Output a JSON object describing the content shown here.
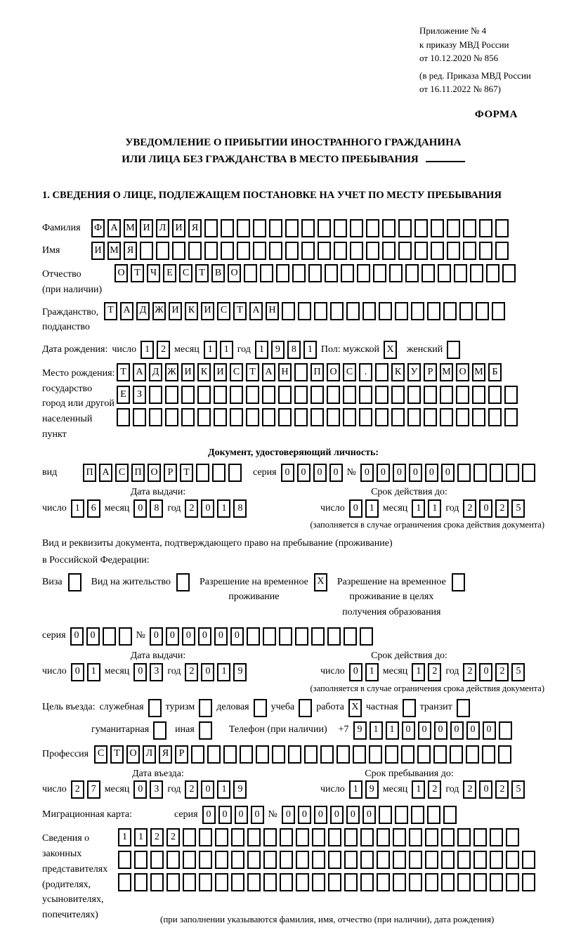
{
  "header": {
    "ref_lines": [
      "Приложение № 4",
      "к приказу МВД России",
      "от 10.12.2020 № 856",
      "(в ред. Приказа МВД России",
      "от 16.11.2022 № 867)"
    ],
    "forma": "ФОРМА"
  },
  "title": {
    "line1": "УВЕДОМЛЕНИЕ О ПРИБЫТИИ ИНОСТРАННОГО ГРАЖДАНИНА",
    "line2": "ИЛИ ЛИЦА БЕЗ ГРАЖДАНСТВА В МЕСТО ПРЕБЫВАНИЯ"
  },
  "section1_heading": "1. СВЕДЕНИЯ О ЛИЦЕ, ПОДЛЕЖАЩЕМ ПОСТАНОВКЕ НА УЧЕТ ПО МЕСТУ ПРЕБЫВАНИЯ",
  "labels": {
    "day": "число",
    "month": "месяц",
    "year": "год",
    "seriya": "серия",
    "no": "№"
  },
  "surname": {
    "label": "Фамилия",
    "value": "ФАМИЛИЯ"
  },
  "given_name": {
    "label": "Имя",
    "value": "ИМЯ"
  },
  "patronymic": {
    "label1": "Отчество",
    "label2": "(при наличии)",
    "value": "ОТЧЕСТВО"
  },
  "citizenship": {
    "label1": "Гражданство,",
    "label2": "подданство",
    "value": "ТАДЖИКИСТАН"
  },
  "birth": {
    "label": "Дата рождения:",
    "day": "12",
    "month": "11",
    "year": "1981",
    "sex_label": "Пол: мужской",
    "male": "X",
    "female_label": "женский",
    "female": ""
  },
  "birthplace": {
    "label1": "Место рождения:",
    "label2": "государство",
    "label3": "город или другой",
    "label4": "населенный пункт",
    "row1": "ТАДЖИКИСТАН ПОС. КУРМОМБ",
    "row2": "ЕЗ",
    "row3": ""
  },
  "identity_doc": {
    "heading": "Документ, удостоверяющий личность:",
    "vid_label": "вид",
    "vid": "ПАСПОРТ",
    "seriya": "0000",
    "number": "000000"
  },
  "identity_dates": {
    "left_title": "Дата выдачи:",
    "right_title": "Срок действия до:",
    "left": {
      "day": "16",
      "month": "08",
      "year": "2018"
    },
    "right": {
      "day": "01",
      "month": "11",
      "year": "2025"
    },
    "note": "(заполняется в случае ограничения срока действия документа)"
  },
  "residence_doc": {
    "line1": "Вид и реквизиты документа, подтверждающего право на пребывание (проживание)",
    "line2": "в Российской Федерации:",
    "opt1_label": "Виза",
    "opt1": "",
    "opt2_label": "Вид на жительство",
    "opt2": "",
    "opt3_line1": "Разрешение на временное",
    "opt3_line2": "проживание",
    "opt3": "X",
    "opt4_line1": "Разрешение на временное",
    "opt4_line2": "проживание в целях",
    "opt4_line3": "получения образования",
    "opt4": "",
    "seriya": "00",
    "number": "000000"
  },
  "residence_dates": {
    "left_title": "Дата выдачи:",
    "right_title": "Срок действия до:",
    "left": {
      "day": "01",
      "month": "03",
      "year": "2019"
    },
    "right": {
      "day": "01",
      "month": "12",
      "year": "2025"
    },
    "note": "(заполняется в случае ограничения срока действия документа)"
  },
  "purpose": {
    "label": "Цель въезда:",
    "opt1_label": "служебная",
    "opt1": "",
    "opt2_label": "туризм",
    "opt2": "",
    "opt3_label": "деловая",
    "opt3": "",
    "opt4_label": "учеба",
    "opt4": "",
    "opt5_label": "работа",
    "opt5": "X",
    "opt6_label": "частная",
    "opt6": "",
    "opt7_label": "транзит",
    "opt7": "",
    "opt8_label": "гуманитарная",
    "opt8": "",
    "opt9_label": "иная",
    "opt9": "",
    "phone_label": "Телефон (при наличии)",
    "phone_prefix": "+7",
    "phone": "911000000"
  },
  "profession": {
    "label": "Профессия",
    "value": "СТОЛЯР"
  },
  "entry_dates": {
    "left_title": "Дата въезда:",
    "right_title": "Срок пребывания до:",
    "left": {
      "day": "27",
      "month": "03",
      "year": "2019"
    },
    "right": {
      "day": "19",
      "month": "12",
      "year": "2025"
    }
  },
  "migration_card": {
    "label": "Миграционная карта:",
    "seriya": "0000",
    "number": "000000"
  },
  "representatives": {
    "label1": "Сведения о",
    "label2": "законных",
    "label3": "представителях",
    "label4": "(родителях,",
    "label5": "усыновителях,",
    "label6": "попечителях)",
    "row1": "1122",
    "row2": "",
    "row3": "",
    "note": "(при заполнении указываются фамилия, имя, отчество (при наличии), дата рождения)"
  }
}
